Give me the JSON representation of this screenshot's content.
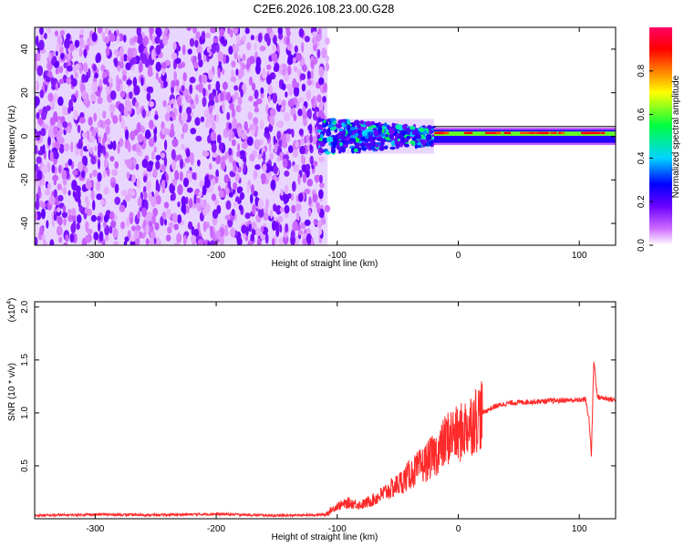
{
  "chart_data": [
    {
      "type": "heatmap",
      "title": "C2E6.2026.108.23.00.G28",
      "xlabel": "Height of straight line (km)",
      "ylabel": "Frequency (Hz)",
      "xlim": [
        -350,
        130
      ],
      "ylim": [
        -50,
        50
      ],
      "xticks": [
        -300,
        -200,
        -100,
        0,
        100
      ],
      "yticks": [
        -40,
        -20,
        0,
        20,
        40
      ],
      "colorbar": {
        "label": "Normalized spectral amplitude",
        "range": [
          0,
          1
        ],
        "ticks": [
          "0.0",
          "0.2",
          "0.4",
          "0.6",
          "0.8"
        ],
        "colors": [
          "#ffffff",
          "#cc66ff",
          "#6a00ff",
          "#0000ff",
          "#00d5ff",
          "#00ff40",
          "#ffff00",
          "#ff8000",
          "#ff0000",
          "#ff0066"
        ]
      },
      "regions": [
        {
          "x_range": [
            -350,
            -108
          ],
          "freq_range": [
            -50,
            50
          ],
          "amplitude": 0.1
        },
        {
          "x_range": [
            -115,
            -20
          ],
          "freq_range": [
            -8,
            8
          ],
          "amplitude": 0.35
        },
        {
          "x_range": [
            -20,
            130
          ],
          "freq_range": [
            -3,
            3
          ],
          "amplitude": 0.6
        },
        {
          "x_range": [
            -20,
            130
          ],
          "freq_range": [
            1,
            2
          ],
          "amplitude": 0.9
        }
      ]
    },
    {
      "type": "line",
      "xlabel": "Height of straight line (km)",
      "ylabel": "SNR (10 * v/v)",
      "scale_label": "(x10",
      "scale_exponent": "4",
      "xlim": [
        -350,
        130
      ],
      "ylim": [
        0,
        20500
      ],
      "xticks": [
        -300,
        -200,
        -100,
        0,
        100
      ],
      "yticks": [
        5000,
        10000,
        15000,
        20000
      ],
      "ytick_labels": [
        "0.5",
        "1.0",
        "1.5",
        "2.0"
      ],
      "line_color": "#ff2a2a",
      "series": [
        {
          "x": [
            -350,
            -300,
            -250,
            -200,
            -150,
            -120,
            -110,
            -100,
            -90,
            -80,
            -70,
            -60,
            -50,
            -40,
            -30,
            -20,
            -15,
            -10,
            -5,
            0,
            5,
            10,
            15,
            20,
            25,
            30,
            40,
            50,
            60,
            70,
            80,
            90,
            100,
            105,
            108,
            110,
            112,
            115,
            120,
            125,
            130
          ],
          "y": [
            300,
            400,
            350,
            450,
            300,
            350,
            400,
            1200,
            1500,
            1300,
            1800,
            2500,
            3200,
            4200,
            5000,
            6000,
            6500,
            7500,
            8000,
            7800,
            8500,
            9000,
            9500,
            10000,
            10300,
            10600,
            10900,
            11000,
            11050,
            11100,
            11150,
            11200,
            11200,
            11300,
            9500,
            6000,
            15000,
            11500,
            11400,
            11300,
            11200
          ]
        }
      ]
    }
  ]
}
